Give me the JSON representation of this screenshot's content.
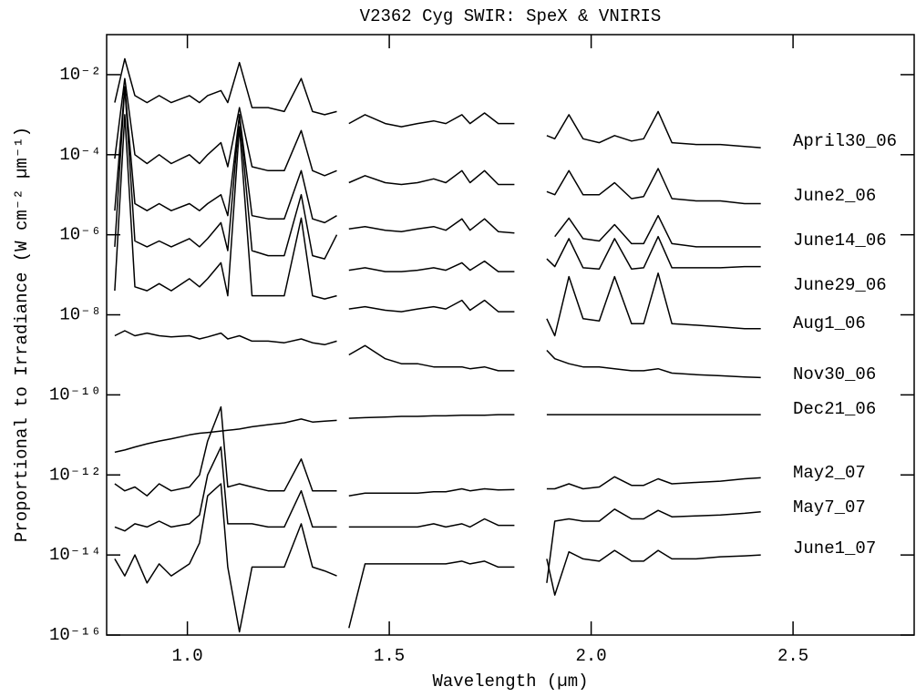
{
  "chart_data": {
    "type": "line",
    "title": "V2362 Cyg SWIR: SpeX & VNIRIS",
    "xlabel": "Wavelength (µm)",
    "ylabel": "Proportional to Irradiance (W cm⁻² µm⁻¹)",
    "yscale": "log",
    "grid": false,
    "xlim": [
      0.8,
      2.8
    ],
    "ylim": [
      1e-16,
      0.1
    ],
    "xticks": [
      {
        "value": 1,
        "label": "1.0"
      },
      1.5,
      {
        "value": 2,
        "label": "2.0"
      },
      2.5
    ],
    "yticks": [
      {
        "value": 1e-16,
        "label": "10⁻¹⁶"
      },
      {
        "value": 1e-14,
        "label": "10⁻¹⁴"
      },
      {
        "value": 1e-12,
        "label": "10⁻¹²"
      },
      {
        "value": 1e-10,
        "label": "10⁻¹⁰"
      },
      {
        "value": 1e-08,
        "label": "10⁻⁸"
      },
      {
        "value": 1e-06,
        "label": "10⁻⁶"
      },
      {
        "value": 0.0001,
        "label": "10⁻⁴"
      },
      {
        "value": 0.01,
        "label": "10⁻²"
      }
    ],
    "x": [
      0.82,
      0.845,
      0.87,
      0.9,
      0.93,
      0.96,
      1.005,
      1.03,
      1.05,
      1.083,
      1.1,
      1.129,
      1.16,
      1.2,
      1.24,
      1.282,
      1.31,
      1.34,
      1.37,
      1.385,
      1.4,
      1.44,
      1.49,
      1.53,
      1.57,
      1.61,
      1.64,
      1.68,
      1.7,
      1.736,
      1.77,
      1.81,
      1.85,
      1.89,
      1.91,
      1.945,
      1.98,
      2.02,
      2.058,
      2.1,
      2.13,
      2.166,
      2.2,
      2.26,
      2.32,
      2.38,
      2.42
    ],
    "series": [
      {
        "name": "April30_06",
        "color": "#000000",
        "values": [
          0.002,
          0.025,
          0.003,
          0.002,
          0.003,
          0.002,
          0.003,
          0.002,
          0.003,
          0.004,
          0.002,
          0.02,
          0.0015,
          0.0015,
          0.0012,
          0.008,
          0.0012,
          0.001,
          0.0012,
          null,
          0.0006,
          0.001,
          0.0006,
          0.0005,
          0.0006,
          0.0007,
          0.0006,
          0.001,
          0.0006,
          0.0011,
          0.0006,
          0.0006,
          null,
          0.0003,
          0.00025,
          0.001,
          0.00025,
          0.0002,
          0.0003,
          0.00022,
          0.00025,
          0.0012,
          0.0002,
          0.00018,
          0.00018,
          0.00016,
          0.00015
        ]
      },
      {
        "name": "June2_06",
        "color": "#000000",
        "values": [
          8e-05,
          0.008,
          0.0001,
          6e-05,
          0.0001,
          6e-05,
          0.0001,
          6e-05,
          0.0001,
          0.0002,
          5e-05,
          0.0015,
          5e-05,
          4e-05,
          4e-05,
          0.0004,
          4e-05,
          3e-05,
          4e-05,
          null,
          2e-05,
          3e-05,
          2e-05,
          1.8e-05,
          2e-05,
          2.5e-05,
          2e-05,
          4e-05,
          2e-05,
          4e-05,
          1.8e-05,
          1.8e-05,
          null,
          1.2e-05,
          1e-05,
          4e-05,
          1e-05,
          1e-05,
          2e-05,
          8e-06,
          9e-06,
          4.5e-05,
          8e-06,
          7e-06,
          7e-06,
          6e-06,
          6e-06
        ]
      },
      {
        "name": "June14_06",
        "color": "#000000",
        "values": [
          4e-06,
          0.005,
          6e-06,
          4e-06,
          6e-06,
          4e-06,
          6e-06,
          4e-06,
          6e-06,
          1e-05,
          3e-06,
          0.001,
          3e-06,
          2.5e-06,
          2.5e-06,
          4e-05,
          2.5e-06,
          2e-06,
          3e-06,
          null,
          1.4e-06,
          1.6e-06,
          1.3e-06,
          1.2e-06,
          1.4e-06,
          1.6e-06,
          1.3e-06,
          2.5e-06,
          1.3e-06,
          2.5e-06,
          1.2e-06,
          1.1e-06,
          null,
          null,
          9e-07,
          2.6e-06,
          8e-07,
          7e-07,
          1.8e-06,
          6e-07,
          6e-07,
          3e-06,
          6e-07,
          5e-07,
          5e-07,
          5e-07,
          5e-07
        ]
      },
      {
        "name": "June29_06",
        "color": "#000000",
        "values": [
          5e-07,
          0.005,
          7e-07,
          5e-07,
          7e-07,
          5e-07,
          8e-07,
          5e-07,
          8e-07,
          2e-06,
          4e-07,
          0.001,
          4e-07,
          3e-07,
          3e-07,
          1e-05,
          3e-07,
          2.5e-07,
          1e-06,
          null,
          1.3e-07,
          1.5e-07,
          1.2e-07,
          1.2e-07,
          1.3e-07,
          1.5e-07,
          1.3e-07,
          2e-07,
          1.3e-07,
          2.2e-07,
          1.2e-07,
          1.2e-07,
          null,
          2.5e-07,
          1.6e-07,
          8e-07,
          1.5e-07,
          1.4e-07,
          8e-07,
          1.4e-07,
          1.5e-07,
          9e-07,
          1.5e-07,
          1.5e-07,
          1.5e-07,
          1.6e-07,
          1.6e-07
        ]
      },
      {
        "name": "Aug1_06",
        "color": "#000000",
        "values": [
          4e-08,
          0.001,
          5e-08,
          4e-08,
          6e-08,
          4e-08,
          8e-08,
          5e-08,
          8e-08,
          2e-07,
          3e-08,
          0.0005,
          3e-08,
          3e-08,
          3e-08,
          2.6e-06,
          3e-08,
          2.5e-08,
          3e-08,
          null,
          1.4e-08,
          1.6e-08,
          1.3e-08,
          1.2e-08,
          1.4e-08,
          1.6e-08,
          1.4e-08,
          2.3e-08,
          1.3e-08,
          2.3e-08,
          1.2e-08,
          1.2e-08,
          null,
          8e-09,
          3e-09,
          9e-08,
          8e-09,
          7e-09,
          9e-08,
          6e-09,
          6e-09,
          1.1e-07,
          6e-09,
          5.5e-09,
          5e-09,
          4.5e-09,
          4.5e-09
        ]
      },
      {
        "name": "Nov30_06",
        "color": "#000000",
        "values": [
          3e-09,
          4e-09,
          3e-09,
          3.5e-09,
          3e-09,
          2.8e-09,
          3e-09,
          2.5e-09,
          2.8e-09,
          3.5e-09,
          2.5e-09,
          3e-09,
          2.2e-09,
          2.2e-09,
          2e-09,
          2.5e-09,
          2e-09,
          1.8e-09,
          2.2e-09,
          null,
          1e-09,
          1.7e-09,
          8e-10,
          6e-10,
          6e-10,
          5e-10,
          5e-10,
          5e-10,
          4.5e-10,
          5e-10,
          4e-10,
          4e-10,
          null,
          1.3e-09,
          8e-10,
          6e-10,
          5e-10,
          5e-10,
          4.5e-10,
          4e-10,
          4e-10,
          4.5e-10,
          3.5e-10,
          3.2e-10,
          3e-10,
          2.8e-10,
          2.7e-10
        ]
      },
      {
        "name": "Dec21_06",
        "color": "#000000",
        "values": [
          3.7e-12,
          4.2e-12,
          5e-12,
          6e-12,
          7e-12,
          8e-12,
          1e-11,
          1.1e-11,
          1.15e-11,
          1.25e-11,
          1.3e-11,
          1.4e-11,
          1.6e-11,
          1.8e-11,
          2e-11,
          2.5e-11,
          2.1e-11,
          2.2e-11,
          2.3e-11,
          null,
          2.6e-11,
          2.7e-11,
          2.8e-11,
          2.9e-11,
          2.9e-11,
          3e-11,
          3e-11,
          3.1e-11,
          3.1e-11,
          3.1e-11,
          3.2e-11,
          3.2e-11,
          null,
          3.2e-11,
          3.2e-11,
          3.2e-11,
          3.2e-11,
          3.2e-11,
          3.2e-11,
          3.2e-11,
          3.2e-11,
          3.2e-11,
          3.2e-11,
          3.2e-11,
          3.2e-11,
          3.2e-11,
          3.2e-11
        ]
      },
      {
        "name": "May2_07",
        "color": "#000000",
        "values": [
          6e-13,
          4e-13,
          5e-13,
          3e-13,
          6e-13,
          4e-13,
          5e-13,
          1e-12,
          7e-12,
          5e-11,
          5e-13,
          6e-13,
          5e-13,
          4e-13,
          4e-13,
          2.5e-12,
          4e-13,
          4e-13,
          4e-13,
          null,
          3e-13,
          3.5e-13,
          3.5e-13,
          3.5e-13,
          3.5e-13,
          3.8e-13,
          3.8e-13,
          4.5e-13,
          4e-13,
          4.5e-13,
          4.2e-13,
          4.3e-13,
          null,
          4.5e-13,
          4.5e-13,
          6e-13,
          4.5e-13,
          5e-13,
          9e-13,
          5.5e-13,
          5.5e-13,
          8e-13,
          6e-13,
          6.5e-13,
          7e-13,
          8e-13,
          8.5e-13
        ]
      },
      {
        "name": "May7_07",
        "color": "#000000",
        "values": [
          5e-14,
          4e-14,
          6e-14,
          5e-14,
          7e-14,
          5e-14,
          6e-14,
          1e-13,
          1e-12,
          5e-12,
          6e-14,
          6e-14,
          6e-14,
          5e-14,
          5e-14,
          4e-13,
          5e-14,
          5e-14,
          5e-14,
          null,
          5e-14,
          5e-14,
          5e-14,
          5e-14,
          5e-14,
          6e-14,
          5e-14,
          6e-14,
          5e-14,
          8e-14,
          5.5e-14,
          5.5e-14,
          null,
          2e-15,
          7e-14,
          8e-14,
          7e-14,
          7e-14,
          1.4e-13,
          8e-14,
          8e-14,
          1.3e-13,
          9e-14,
          9.5e-14,
          1e-13,
          1.1e-13,
          1.2e-13
        ]
      },
      {
        "name": "June1_07",
        "color": "#000000",
        "values": [
          8e-15,
          3e-15,
          1e-14,
          2e-15,
          6e-15,
          3e-15,
          6e-15,
          2e-14,
          3e-13,
          6e-13,
          5e-15,
          1.2e-16,
          5e-15,
          5e-15,
          5e-15,
          6e-14,
          5e-15,
          4e-15,
          3e-15,
          null,
          1.5e-16,
          6e-15,
          6e-15,
          6e-15,
          6e-15,
          6e-15,
          6e-15,
          7e-15,
          6e-15,
          7e-15,
          5e-15,
          5e-15,
          null,
          8e-15,
          1e-15,
          1.2e-14,
          8e-15,
          7e-15,
          1.3e-14,
          7e-15,
          7e-15,
          1.3e-14,
          8e-15,
          8e-15,
          9e-15,
          9.5e-15,
          1e-14
        ]
      }
    ]
  }
}
